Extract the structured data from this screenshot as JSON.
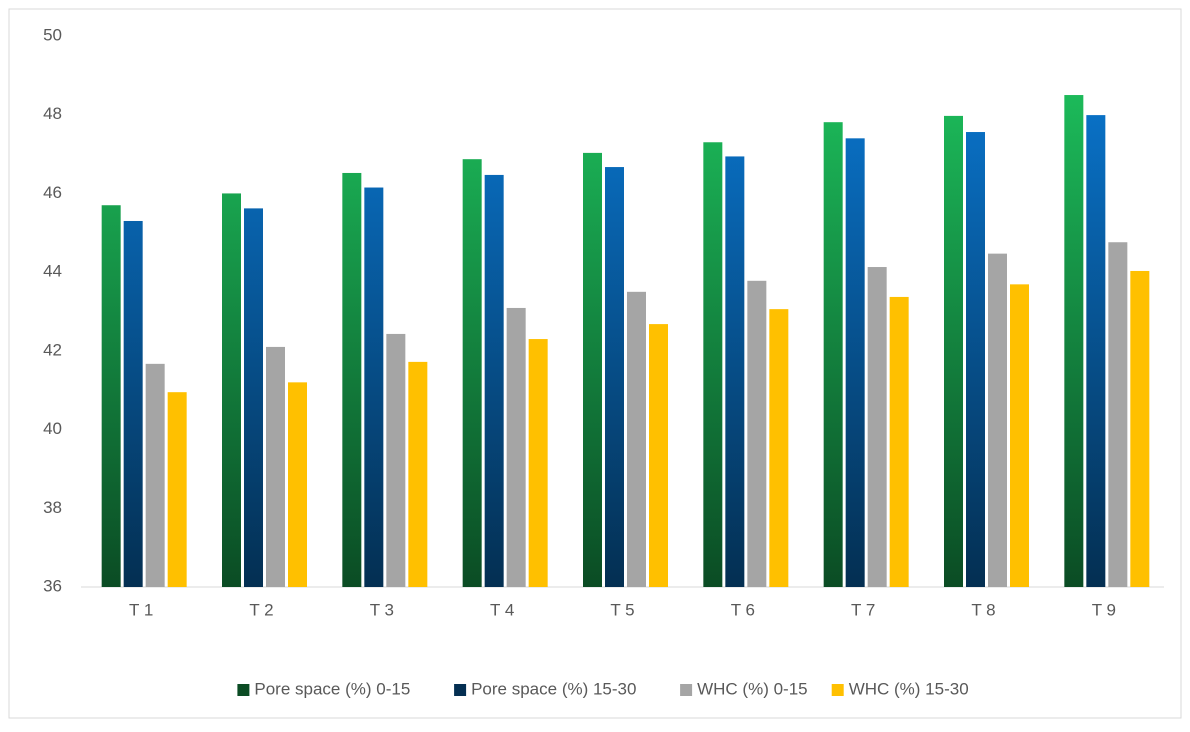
{
  "chart_data": {
    "type": "bar",
    "categories": [
      "T 1",
      "T 2",
      "T 3",
      "T 4",
      "T 5",
      "T 6",
      "T 7",
      "T 8",
      "T 9"
    ],
    "series": [
      {
        "name": "Pore space (%) 0-15",
        "color": "#1ec760",
        "gradient": true,
        "values": [
          45.7,
          46.0,
          46.52,
          46.87,
          47.03,
          47.3,
          47.81,
          47.97,
          48.5
        ]
      },
      {
        "name": "Pore space (%) 15-30",
        "color": "#0a7bd8",
        "gradient": true,
        "values": [
          45.3,
          45.62,
          46.15,
          46.47,
          46.67,
          46.94,
          47.4,
          47.56,
          47.99
        ]
      },
      {
        "name": "WHC (%) 0-15",
        "color": "#a5a5a5",
        "gradient": false,
        "values": [
          41.67,
          42.1,
          42.43,
          43.09,
          43.5,
          43.78,
          44.13,
          44.47,
          44.76
        ]
      },
      {
        "name": "WHC (%) 15-30",
        "color": "#ffc000",
        "gradient": false,
        "values": [
          40.95,
          41.2,
          41.72,
          42.3,
          42.68,
          43.06,
          43.37,
          43.69,
          44.03
        ]
      }
    ],
    "ylim": [
      36,
      50
    ],
    "yticks": [
      36,
      38,
      40,
      42,
      44,
      46,
      48,
      50
    ],
    "grid": false,
    "legend": "bottom"
  }
}
